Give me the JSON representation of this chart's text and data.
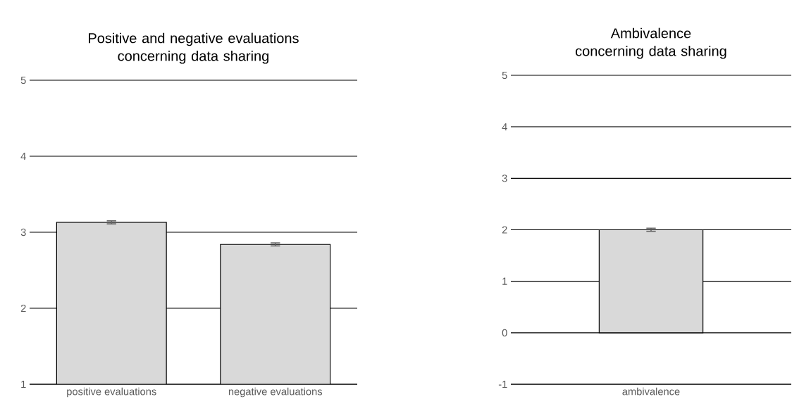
{
  "chart_data": [
    {
      "type": "bar",
      "title": "Positive and negative evaluations concerning data sharing",
      "categories": [
        "positive evaluations",
        "negative evaluations"
      ],
      "values": [
        3.13,
        2.84
      ],
      "errors": [
        0.02,
        0.02
      ],
      "color": "#d9d9d9",
      "ylim": [
        1,
        5
      ],
      "yticks": [
        1,
        2,
        3,
        4,
        5
      ],
      "grid": "y"
    },
    {
      "type": "bar",
      "title": "Ambivalence concerning data sharing",
      "categories": [
        "ambivalence"
      ],
      "values": [
        2.0
      ],
      "errors": [
        0.03
      ],
      "color": "#d9d9d9",
      "ylim": [
        -1,
        5
      ],
      "yticks": [
        -1,
        0,
        1,
        2,
        3,
        4,
        5
      ],
      "grid": "y"
    }
  ]
}
